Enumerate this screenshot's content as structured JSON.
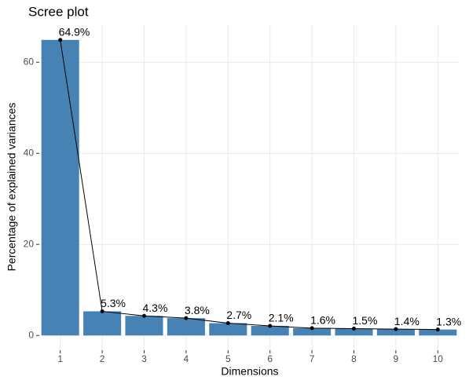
{
  "chart_data": {
    "type": "bar",
    "title": "Scree plot",
    "x_label": "Dimensions",
    "y_label": "Percentage of explained variances",
    "categories": [
      "1",
      "2",
      "3",
      "4",
      "5",
      "6",
      "7",
      "8",
      "9",
      "10"
    ],
    "values": [
      64.9,
      5.3,
      4.3,
      3.8,
      2.7,
      2.1,
      1.6,
      1.5,
      1.4,
      1.3
    ],
    "value_labels": [
      "64.9%",
      "5.3%",
      "4.3%",
      "3.8%",
      "2.7%",
      "2.1%",
      "1.6%",
      "1.5%",
      "1.4%",
      "1.3%"
    ],
    "color": "#4682b4",
    "line_color": "#000000",
    "ylim": [
      -3.245,
      68.145
    ],
    "yticks": [
      0,
      20,
      40,
      60
    ],
    "grid": true
  }
}
